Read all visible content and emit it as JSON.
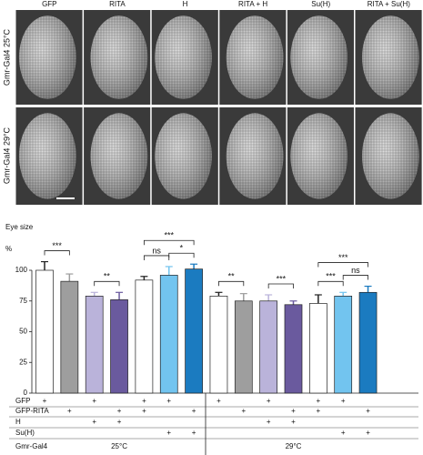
{
  "panels": {
    "columns": [
      "GFP",
      "RITA",
      "H",
      "RITA + H",
      "Su(H)",
      "RITA + Su(H)"
    ],
    "rows": [
      "Gmr-Gal4 25°C",
      "Gmr-Gal4 29°C"
    ]
  },
  "chart_data": {
    "type": "bar",
    "ylabel": "Eye size",
    "y_unit": "%",
    "ylim": [
      0,
      100
    ],
    "yticks": [
      0,
      25,
      50,
      75,
      100
    ],
    "values": [
      100,
      91,
      79,
      76,
      92,
      96,
      101,
      79,
      75,
      75,
      72,
      73,
      79,
      82
    ],
    "errors": [
      7,
      6,
      3,
      6,
      3,
      7,
      4,
      3,
      6,
      5,
      3,
      7,
      3,
      5
    ],
    "colors": [
      "#ffffff",
      "#9e9e9e",
      "#bab3da",
      "#6a5a9e",
      "#ffffff",
      "#72c4ef",
      "#1b7bc0",
      "#ffffff",
      "#9e9e9e",
      "#bab3da",
      "#6a5a9e",
      "#ffffff",
      "#72c4ef",
      "#1b7bc0"
    ],
    "significance": [
      {
        "bars": [
          0,
          1
        ],
        "label": "***"
      },
      {
        "bars": [
          2,
          3
        ],
        "label": "**"
      },
      {
        "bars": [
          4,
          5
        ],
        "label": "ns"
      },
      {
        "bars": [
          5,
          6
        ],
        "label": "*"
      },
      {
        "bars": [
          4,
          6
        ],
        "label": "***"
      },
      {
        "bars": [
          7,
          8
        ],
        "label": "**"
      },
      {
        "bars": [
          9,
          10
        ],
        "label": "***"
      },
      {
        "bars": [
          11,
          12
        ],
        "label": "***"
      },
      {
        "bars": [
          12,
          13
        ],
        "label": "ns"
      },
      {
        "bars": [
          11,
          13
        ],
        "label": "***"
      }
    ],
    "genotype_table": {
      "rows": [
        {
          "label": "GFP",
          "cells": [
            "+",
            null,
            "+",
            null,
            "+",
            "+",
            null,
            "+",
            null,
            "+",
            null,
            "+",
            "+",
            null
          ]
        },
        {
          "label": "GFP-RITA",
          "cells": [
            null,
            "+",
            null,
            "+",
            "+",
            null,
            "+",
            null,
            "+",
            null,
            "+",
            "+",
            null,
            "+"
          ]
        },
        {
          "label": "H",
          "cells": [
            null,
            null,
            "+",
            "+",
            null,
            null,
            null,
            null,
            null,
            "+",
            "+",
            null,
            null,
            null
          ]
        },
        {
          "label": "Su(H)",
          "cells": [
            null,
            null,
            null,
            null,
            null,
            "+",
            "+",
            null,
            null,
            null,
            null,
            null,
            "+",
            "+"
          ]
        }
      ],
      "driver": "Gmr-Gal4",
      "groups": [
        "25°C",
        "29°C"
      ]
    }
  }
}
